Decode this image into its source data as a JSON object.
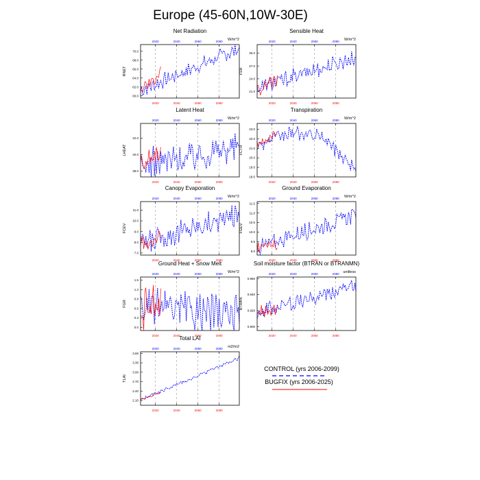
{
  "title": "Europe (45-60N,10W-30E)",
  "legend": {
    "control_label": "CONTROL (yrs 2006-2099)",
    "bugfix_label": "BUGFIX (yrs 2006-2025)"
  },
  "colors": {
    "control": "#0000ff",
    "bugfix": "#ff0000",
    "grid": "#999999"
  },
  "chart_data": [
    {
      "type": "line",
      "title": "Net Radiation",
      "units": "W/m^2",
      "ylabel": "RNET",
      "x_years": [
        2020,
        2040,
        2060,
        2080
      ],
      "xlim": [
        2006,
        2099
      ],
      "ylim": [
        59.5,
        71.5
      ],
      "yticks": [
        "60.0",
        "62.0",
        "64.0",
        "66.0",
        "68.0",
        "70.0"
      ],
      "control_trend": [
        61.2,
        70.6
      ],
      "bugfix_trend": [
        61.2,
        65.0
      ],
      "control_amp": 1.4,
      "bugfix_amp": 1.3
    },
    {
      "type": "line",
      "title": "Sensible Heat",
      "units": "W/m^2",
      "ylabel": "FSH",
      "x_years": [
        2020,
        2040,
        2060,
        2080
      ],
      "xlim": [
        2006,
        2099
      ],
      "ylim": [
        19.5,
        32.0
      ],
      "yticks": [
        "21.0",
        "24.0",
        "27.0",
        "30.0"
      ],
      "control_trend": [
        21.8,
        29.0
      ],
      "bugfix_trend": [
        21.8,
        23.6
      ],
      "control_amp": 1.6,
      "bugfix_amp": 1.5
    },
    {
      "type": "line",
      "title": "Latent Heat",
      "units": "W/m^2",
      "ylabel": "LHEAT",
      "x_years": [
        2020,
        2040,
        2060,
        2080
      ],
      "xlim": [
        2006,
        2099
      ],
      "ylim": [
        37.3,
        43.8
      ],
      "yticks": [
        "38.0",
        "40.0",
        "42.0"
      ],
      "control_trend": [
        38.6,
        41.0
      ],
      "bugfix_trend": [
        38.6,
        40.4
      ],
      "control_amp": 1.6,
      "bugfix_amp": 1.2
    },
    {
      "type": "line",
      "title": "Transpiration",
      "units": "W/m^2",
      "ylabel": "FCTR",
      "x_years": [
        2020,
        2040,
        2060,
        2080
      ],
      "xlim": [
        2006,
        2099
      ],
      "ylim": [
        18.0,
        23.6
      ],
      "yticks": [
        "18.0",
        "19.0",
        "20.0",
        "21.0",
        "22.0",
        "23.0"
      ],
      "control_trend": [
        21.3,
        22.6,
        22.2,
        18.7
      ],
      "bugfix_trend": [
        21.3,
        22.5
      ],
      "control_amp": 0.6,
      "bugfix_amp": 0.5
    },
    {
      "type": "line",
      "title": "Canopy Evaporation",
      "units": "W/m^2",
      "ylabel": "FCEV",
      "x_years": [
        2020,
        2040,
        2060,
        2080
      ],
      "xlim": [
        2006,
        2099
      ],
      "ylim": [
        6.8,
        11.8
      ],
      "yticks": [
        "7.0",
        "8.0",
        "9.0",
        "10.0",
        "11.0"
      ],
      "control_trend": [
        7.9,
        10.6
      ],
      "bugfix_trend": [
        7.9,
        8.6
      ],
      "control_amp": 0.9,
      "bugfix_amp": 0.7
    },
    {
      "type": "line",
      "title": "Ground Evaporation",
      "units": "W/m^2",
      "ylabel": "FGEV",
      "x_years": [
        2020,
        2040,
        2060,
        2080
      ],
      "xlim": [
        2006,
        2099
      ],
      "ylim": [
        8.8,
        11.6
      ],
      "yticks": [
        "9.0",
        "9.5",
        "10.0",
        "10.5",
        "11.0",
        "11.5"
      ],
      "control_trend": [
        9.2,
        10.9
      ],
      "bugfix_trend": [
        9.2,
        9.4
      ],
      "control_amp": 0.35,
      "bugfix_amp": 0.3
    },
    {
      "type": "line",
      "title": "Ground Heat + Snow Melt",
      "units": "W/m^2",
      "ylabel": "FGR",
      "x_years": [
        2020,
        2040,
        2060,
        2080
      ],
      "xlim": [
        2006,
        2099
      ],
      "ylim": [
        -0.1,
        1.6
      ],
      "yticks": [
        "0.0",
        "0.3",
        "0.6",
        "0.9",
        "1.2",
        "1.5"
      ],
      "control_trend": [
        0.65,
        0.4
      ],
      "bugfix_trend": [
        0.7,
        0.7
      ],
      "control_amp": 0.5,
      "bugfix_amp": 0.6
    },
    {
      "type": "line",
      "title": "Soil moisture factor (BTRAN or BTRANMN)",
      "units": "unitless",
      "ylabel": "BTRAN",
      "x_years": [
        2020,
        2040,
        2060,
        2080
      ],
      "xlim": [
        2006,
        2099
      ],
      "ylim": [
        0.895,
        0.962
      ],
      "yticks": [
        "0.900",
        "0.920",
        "0.940",
        "0.960"
      ],
      "control_trend": [
        0.918,
        0.95
      ],
      "bugfix_trend": [
        0.918,
        0.922
      ],
      "control_amp": 0.009,
      "bugfix_amp": 0.008
    },
    {
      "type": "line",
      "title": "Total LAI",
      "units": "m2/m2",
      "ylabel": "TLAI",
      "x_years": [
        2020,
        2040,
        2060,
        2080
      ],
      "xlim": [
        2006,
        2099
      ],
      "ylim": [
        1.95,
        3.65
      ],
      "yticks": [
        "2.10",
        "2.40",
        "2.70",
        "3.00",
        "3.30",
        "3.60"
      ],
      "control_trend": [
        2.12,
        3.45
      ],
      "bugfix_trend": [
        2.12,
        2.35
      ],
      "control_amp": 0.05,
      "bugfix_amp": 0.04
    }
  ]
}
